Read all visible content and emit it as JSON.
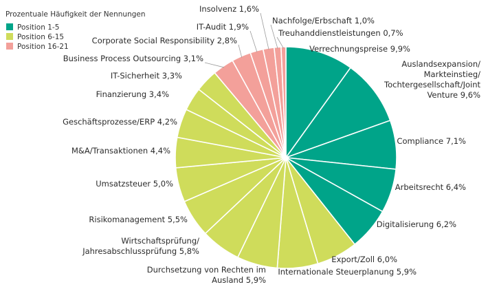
{
  "chart_data": {
    "type": "pie",
    "legend": {
      "title": "Prozentuale Häufigkeit der Nennungen",
      "placement": "top-left",
      "items": [
        {
          "label": "Position 1-5",
          "color": "#00a489"
        },
        {
          "label": "Position 6-15",
          "color": "#cfdc5b"
        },
        {
          "label": "Position 16-21",
          "color": "#f3a09a"
        }
      ]
    },
    "slices": [
      {
        "label": "Verrechnungspreise 9,9%",
        "value": 9.9,
        "group": 0
      },
      {
        "label": "Auslandsexpansion/\nMarkteinstieg/\nTochtergesellschaft/Joint\nVenture 9,6%",
        "value": 9.6,
        "group": 0
      },
      {
        "label": "Compliance 7,1%",
        "value": 7.1,
        "group": 0
      },
      {
        "label": "Arbeitsrecht 6,4%",
        "value": 6.4,
        "group": 0
      },
      {
        "label": "Digitalisierung 6,2%",
        "value": 6.2,
        "group": 0
      },
      {
        "label": "Export/Zoll 6,0%",
        "value": 6.0,
        "group": 1
      },
      {
        "label": "Internationale Steuerplanung 5,9%",
        "value": 5.9,
        "group": 1
      },
      {
        "label": "Durchsetzung von Rechten im\nAusland 5,9%",
        "value": 5.9,
        "group": 1
      },
      {
        "label": "Wirtschaftsprüfung/\nJahresabschlussprüfung 5,8%",
        "value": 5.8,
        "group": 1
      },
      {
        "label": "Risikomanagement 5,5%",
        "value": 5.5,
        "group": 1
      },
      {
        "label": "Umsatzsteuer 5,0%",
        "value": 5.0,
        "group": 1
      },
      {
        "label": "M&A/Transaktionen 4,4%",
        "value": 4.4,
        "group": 1
      },
      {
        "label": "Geschäftsprozesse/ERP 4,2%",
        "value": 4.2,
        "group": 1
      },
      {
        "label": "Finanzierung 3,4%",
        "value": 3.4,
        "group": 1
      },
      {
        "label": "IT-Sicherheit 3,3%",
        "value": 3.3,
        "group": 1
      },
      {
        "label": "Business Process Outsourcing 3,1%",
        "value": 3.1,
        "group": 2
      },
      {
        "label": "Corporate Social Responsibility 2,8%",
        "value": 2.8,
        "group": 2
      },
      {
        "label": "IT-Audit 1,9%",
        "value": 1.9,
        "group": 2
      },
      {
        "label": "Insolvenz 1,6%",
        "value": 1.6,
        "group": 2
      },
      {
        "label": "Nachfolge/Erbschaft 1,0%",
        "value": 1.0,
        "group": 2
      },
      {
        "label": "Treuhanddienstleistungen 0,7%",
        "value": 0.7,
        "group": 2
      }
    ]
  }
}
